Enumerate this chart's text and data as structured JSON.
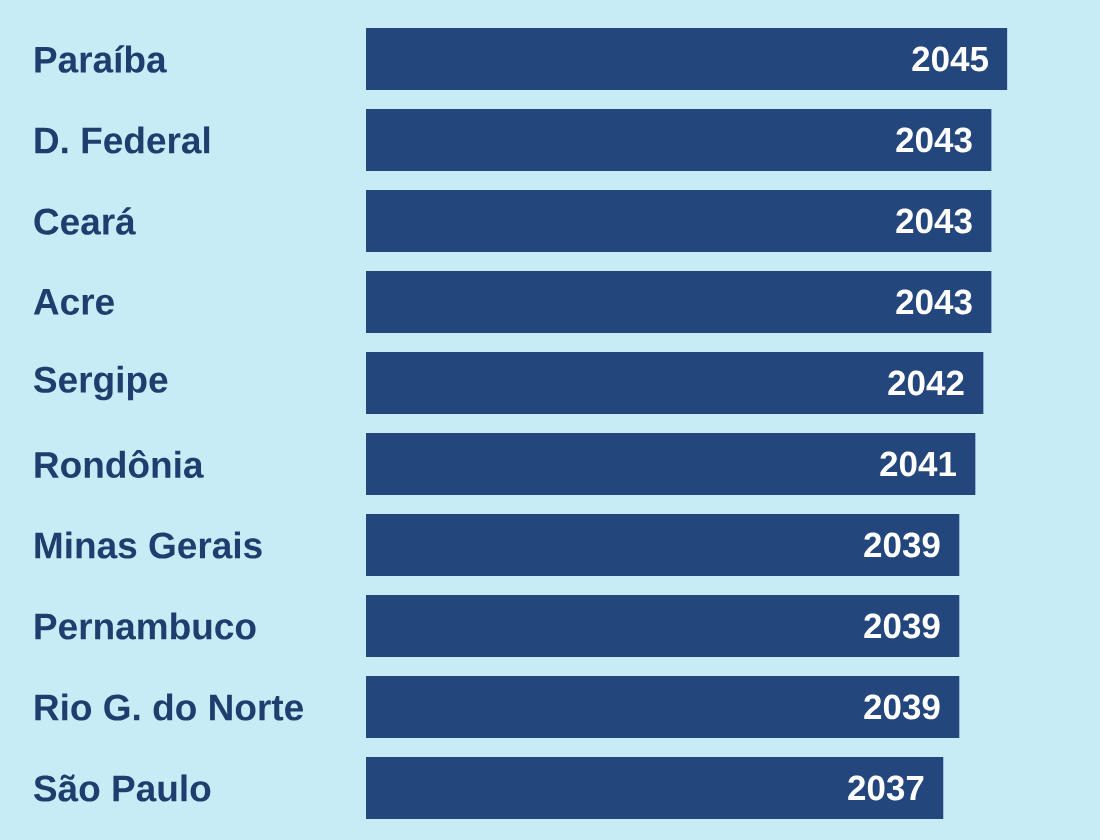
{
  "chart_data": {
    "type": "bar",
    "orientation": "horizontal",
    "categories": [
      "Paraíba",
      "D. Federal",
      "Ceará",
      "Acre",
      "Sergipe",
      "Rondônia",
      "Minas Gerais",
      "Pernambuco",
      "Rio G. do Norte",
      "São Paulo"
    ],
    "values": [
      2045,
      2043,
      2043,
      2043,
      2042,
      2041,
      2039,
      2039,
      2039,
      2037
    ],
    "color": "#23467d",
    "xlim": [
      1965,
      2045
    ],
    "data_labels": true,
    "tick_labels": "y"
  }
}
